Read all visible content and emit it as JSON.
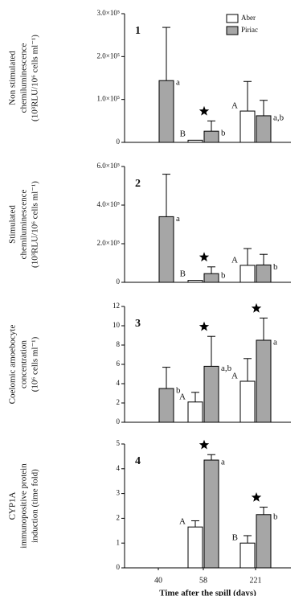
{
  "chart_data": [
    {
      "type": "bar",
      "panel_label": "1",
      "ylabel": [
        "Non stimulated",
        "chemiluminescence",
        "(10³RLU/10⁶ cells ml⁻¹)"
      ],
      "ylim": [
        0,
        300000
      ],
      "yticks": [
        0,
        {
          "value": 100000,
          "label": "1.0×10⁵"
        },
        {
          "value": 200000,
          "label": "2.0×10⁵"
        },
        {
          "value": 300000,
          "label": "3.0×10⁵"
        }
      ],
      "legend": "upper right",
      "series": [
        {
          "name": "Aber",
          "color": "#ffffff",
          "values": [
            null,
            5000,
            73000
          ],
          "errors": [
            null,
            null,
            69000
          ],
          "letters": [
            null,
            "B",
            "A"
          ]
        },
        {
          "name": "Piriac",
          "color": "#a6a6a6",
          "values": [
            144000,
            26000,
            62000
          ],
          "errors": [
            124000,
            24000,
            36000
          ],
          "letters": [
            "a",
            "b",
            "a,b"
          ]
        }
      ],
      "significant": [
        false,
        true,
        false
      ]
    },
    {
      "type": "bar",
      "panel_label": "2",
      "ylabel": [
        "Stimulated",
        "chemiluminescence",
        "(10³RLU/10⁶ cells ml⁻¹)"
      ],
      "ylim": [
        0,
        600000
      ],
      "yticks": [
        0,
        {
          "value": 200000,
          "label": "2.0×10⁵"
        },
        {
          "value": 400000,
          "label": "4.0×10⁵"
        },
        {
          "value": 600000,
          "label": "6.0×10⁵"
        }
      ],
      "series": [
        {
          "color": "#ffffff",
          "values": [
            null,
            10000,
            88000
          ],
          "errors": [
            null,
            null,
            87000
          ],
          "letters": [
            null,
            "B",
            "A"
          ]
        },
        {
          "color": "#a6a6a6",
          "values": [
            340000,
            45000,
            90000
          ],
          "errors": [
            220000,
            35000,
            55000
          ],
          "letters": [
            "a",
            "b",
            "b"
          ]
        }
      ],
      "significant": [
        false,
        true,
        false
      ]
    },
    {
      "type": "bar",
      "panel_label": "3",
      "ylabel": [
        "Coelomic amoebocyte",
        "concentration",
        "(10⁶ cells ml⁻¹)"
      ],
      "ylim": [
        0,
        12
      ],
      "yticks": [
        0,
        2,
        4,
        6,
        8,
        10,
        12
      ],
      "series": [
        {
          "color": "#ffffff",
          "values": [
            null,
            2.1,
            4.25
          ],
          "errors": [
            null,
            1.0,
            2.35
          ],
          "letters": [
            null,
            "A",
            "A"
          ]
        },
        {
          "color": "#a6a6a6",
          "values": [
            3.5,
            5.8,
            8.5
          ],
          "errors": [
            2.2,
            3.1,
            2.3
          ],
          "letters": [
            "b",
            "a,b",
            "a"
          ]
        }
      ],
      "significant": [
        false,
        true,
        true
      ]
    },
    {
      "type": "bar",
      "panel_label": "4",
      "ylabel": [
        "CYP1A",
        "immunopositive protein",
        "induction (time fold)"
      ],
      "ylim": [
        0,
        5
      ],
      "yticks": [
        0,
        1,
        2,
        3,
        4,
        5
      ],
      "categories": [
        "40",
        "58",
        "221"
      ],
      "xlabel": "Time after the spill (days)",
      "series": [
        {
          "color": "#ffffff",
          "values": [
            null,
            1.65,
            1.0
          ],
          "errors": [
            null,
            0.25,
            0.3
          ],
          "letters": [
            null,
            "A",
            "B"
          ]
        },
        {
          "color": "#a6a6a6",
          "values": [
            null,
            4.35,
            2.15
          ],
          "errors": [
            null,
            0.22,
            0.3
          ],
          "letters": [
            null,
            "a",
            "b"
          ]
        }
      ],
      "significant": [
        false,
        true,
        true
      ]
    }
  ]
}
